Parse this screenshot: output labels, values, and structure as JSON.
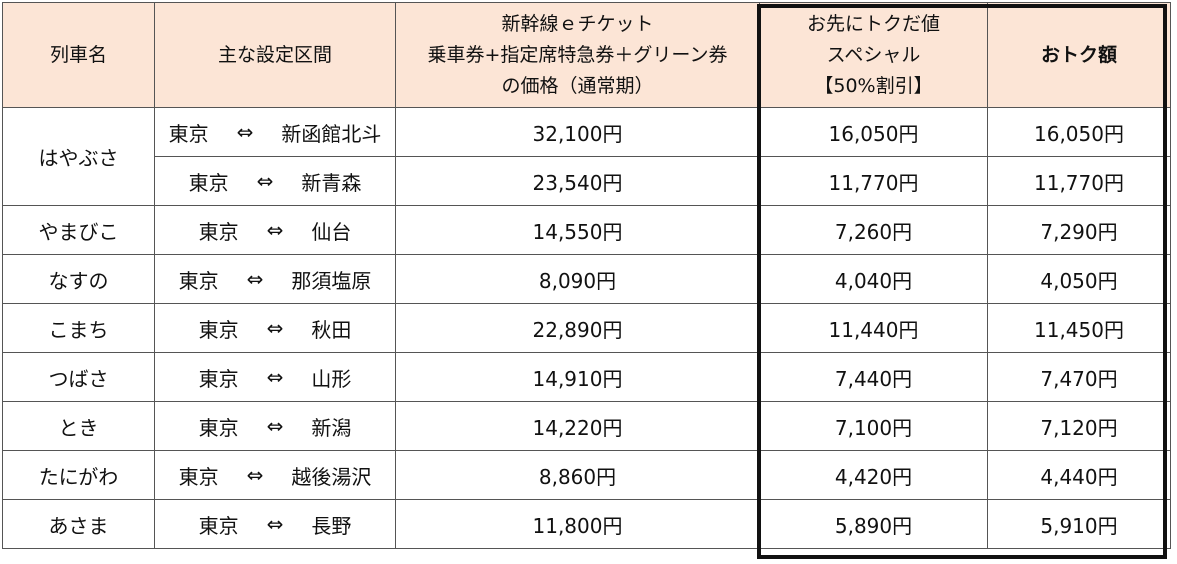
{
  "headers": {
    "train": "列車名",
    "section": "主な設定区間",
    "regular": [
      "新幹線ｅチケット",
      "乗車券+指定席特急券＋グリーン券",
      "の価格（通常期）"
    ],
    "special": [
      "お先にトクだ値",
      "スペシャル",
      "【50%割引】"
    ],
    "savings": "おトク額"
  },
  "rows": [
    {
      "train": "はやぶさ",
      "from": "東京",
      "arrow": "⇔",
      "to": "新函館北斗",
      "regular": "32,100円",
      "special": "16,050円",
      "savings": "16,050円"
    },
    {
      "train": "",
      "from": "東京",
      "arrow": "⇔",
      "to": "新青森",
      "regular": "23,540円",
      "special": "11,770円",
      "savings": "11,770円"
    },
    {
      "train": "やまびこ",
      "from": "東京",
      "arrow": "⇔",
      "to": "仙台",
      "regular": "14,550円",
      "special": "7,260円",
      "savings": "7,290円"
    },
    {
      "train": "なすの",
      "from": "東京",
      "arrow": "⇔",
      "to": "那須塩原",
      "regular": "8,090円",
      "special": "4,040円",
      "savings": "4,050円"
    },
    {
      "train": "こまち",
      "from": "東京",
      "arrow": "⇔",
      "to": "秋田",
      "regular": "22,890円",
      "special": "11,440円",
      "savings": "11,450円"
    },
    {
      "train": "つばさ",
      "from": "東京",
      "arrow": "⇔",
      "to": "山形",
      "regular": "14,910円",
      "special": "7,440円",
      "savings": "7,470円"
    },
    {
      "train": "とき",
      "from": "東京",
      "arrow": "⇔",
      "to": "新潟",
      "regular": "14,220円",
      "special": "7,100円",
      "savings": "7,120円"
    },
    {
      "train": "たにがわ",
      "from": "東京",
      "arrow": "⇔",
      "to": "越後湯沢",
      "regular": "8,860円",
      "special": "4,420円",
      "savings": "4,440円"
    },
    {
      "train": "あさま",
      "from": "東京",
      "arrow": "⇔",
      "to": "長野",
      "regular": "11,800円",
      "special": "5,890円",
      "savings": "5,910円"
    }
  ],
  "colors": {
    "header_bg": "#fce5d6",
    "border": "#555555",
    "frame": "#111111"
  }
}
